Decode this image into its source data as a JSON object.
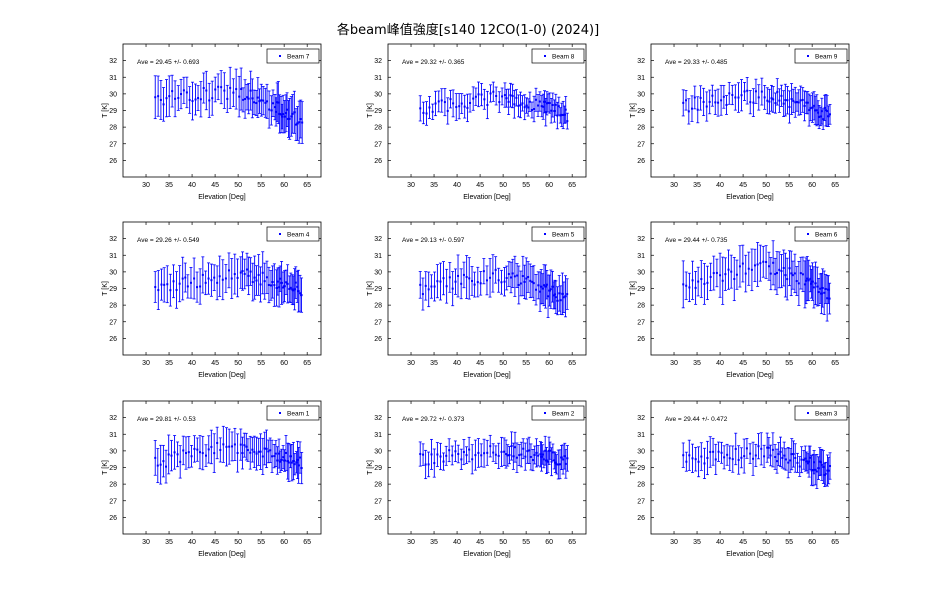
{
  "title": "各beam峰值強度[s140  12CO(1-0) (2024)]",
  "colors": {
    "series": "#0000ff",
    "axes": "#000000",
    "background": "#ffffff"
  },
  "chart_data": [
    {
      "type": "scatter",
      "beam": "Beam 7",
      "legend": "Beam 7",
      "annotation": "Ave = 29.45 +/- 0.693",
      "xlabel": "Elevation [Deg]",
      "ylabel": "T [K]",
      "xlim": [
        25,
        68
      ],
      "ylim": [
        25,
        33
      ],
      "xticks": [
        30,
        35,
        40,
        45,
        50,
        55,
        60,
        65
      ],
      "yticks": [
        26,
        27,
        28,
        29,
        30,
        31,
        32
      ],
      "error_bars": true,
      "legend_position": "top-right",
      "elevation_range": [
        32,
        64
      ],
      "profile": {
        "start": 29.7,
        "peak": 30.1,
        "end": 28.2
      },
      "errorbar_halfwidth": 1.0
    },
    {
      "type": "scatter",
      "beam": "Beam 8",
      "legend": "Beam 8",
      "annotation": "Ave = 29.32 +/- 0.365",
      "xlabel": "Elevation [Deg]",
      "ylabel": "T [K]",
      "xlim": [
        25,
        68
      ],
      "ylim": [
        25,
        33
      ],
      "xticks": [
        30,
        35,
        40,
        45,
        50,
        55,
        60,
        65
      ],
      "yticks": [
        26,
        27,
        28,
        29,
        30,
        31,
        32
      ],
      "error_bars": true,
      "legend_position": "top-right",
      "elevation_range": [
        32,
        64
      ],
      "profile": {
        "start": 29.0,
        "peak": 29.8,
        "end": 28.7
      },
      "errorbar_halfwidth": 0.65
    },
    {
      "type": "scatter",
      "beam": "Beam 9",
      "legend": "Beam 9",
      "annotation": "Ave = 29.33 +/- 0.485",
      "xlabel": "Elevation [Deg]",
      "ylabel": "T [K]",
      "xlim": [
        25,
        68
      ],
      "ylim": [
        25,
        33
      ],
      "xticks": [
        30,
        35,
        40,
        45,
        50,
        55,
        60,
        65
      ],
      "yticks": [
        26,
        27,
        28,
        29,
        30,
        31,
        32
      ],
      "error_bars": true,
      "legend_position": "top-right",
      "elevation_range": [
        32,
        64
      ],
      "profile": {
        "start": 29.3,
        "peak": 29.9,
        "end": 28.6
      },
      "errorbar_halfwidth": 0.75
    },
    {
      "type": "scatter",
      "beam": "Beam 4",
      "legend": "Beam 4",
      "annotation": "Ave = 29.26 +/- 0.549",
      "xlabel": "Elevation [Deg]",
      "ylabel": "T [K]",
      "xlim": [
        25,
        68
      ],
      "ylim": [
        25,
        33
      ],
      "xticks": [
        30,
        35,
        40,
        45,
        50,
        55,
        60,
        65
      ],
      "yticks": [
        26,
        27,
        28,
        29,
        30,
        31,
        32
      ],
      "error_bars": true,
      "legend_position": "top-right",
      "elevation_range": [
        32,
        64
      ],
      "profile": {
        "start": 28.9,
        "peak": 29.9,
        "end": 28.9
      },
      "errorbar_halfwidth": 1.0
    },
    {
      "type": "scatter",
      "beam": "Beam 5",
      "legend": "Beam 5",
      "annotation": "Ave = 29.13 +/- 0.597",
      "xlabel": "Elevation [Deg]",
      "ylabel": "T [K]",
      "xlim": [
        25,
        68
      ],
      "ylim": [
        25,
        33
      ],
      "xticks": [
        30,
        35,
        40,
        45,
        50,
        55,
        60,
        65
      ],
      "yticks": [
        26,
        27,
        28,
        29,
        30,
        31,
        32
      ],
      "error_bars": true,
      "legend_position": "top-right",
      "elevation_range": [
        32,
        64
      ],
      "profile": {
        "start": 29.0,
        "peak": 29.8,
        "end": 28.3
      },
      "errorbar_halfwidth": 1.0
    },
    {
      "type": "scatter",
      "beam": "Beam 6",
      "legend": "Beam 6",
      "annotation": "Ave = 29.44 +/- 0.735",
      "xlabel": "Elevation [Deg]",
      "ylabel": "T [K]",
      "xlim": [
        25,
        68
      ],
      "ylim": [
        25,
        33
      ],
      "xticks": [
        30,
        35,
        40,
        45,
        50,
        55,
        60,
        65
      ],
      "yticks": [
        26,
        27,
        28,
        29,
        30,
        31,
        32
      ],
      "error_bars": true,
      "legend_position": "top-right",
      "elevation_range": [
        32,
        64
      ],
      "profile": {
        "start": 29.0,
        "peak": 30.4,
        "end": 28.5
      },
      "errorbar_halfwidth": 1.1
    },
    {
      "type": "scatter",
      "beam": "Beam 1",
      "legend": "Beam 1",
      "annotation": "Ave = 29.81 +/- 0.53",
      "xlabel": "Elevation [Deg]",
      "ylabel": "T [K]",
      "xlim": [
        25,
        68
      ],
      "ylim": [
        25,
        33
      ],
      "xticks": [
        30,
        35,
        40,
        45,
        50,
        55,
        60,
        65
      ],
      "yticks": [
        26,
        27,
        28,
        29,
        30,
        31,
        32
      ],
      "error_bars": true,
      "legend_position": "top-right",
      "elevation_range": [
        32,
        64
      ],
      "profile": {
        "start": 29.3,
        "peak": 30.3,
        "end": 29.2
      },
      "errorbar_halfwidth": 0.9
    },
    {
      "type": "scatter",
      "beam": "Beam 2",
      "legend": "Beam 2",
      "annotation": "Ave = 29.72 +/- 0.373",
      "xlabel": "Elevation [Deg]",
      "ylabel": "T [K]",
      "xlim": [
        25,
        68
      ],
      "ylim": [
        25,
        33
      ],
      "xticks": [
        30,
        35,
        40,
        45,
        50,
        55,
        60,
        65
      ],
      "yticks": [
        26,
        27,
        28,
        29,
        30,
        31,
        32
      ],
      "error_bars": true,
      "legend_position": "top-right",
      "elevation_range": [
        32,
        64
      ],
      "profile": {
        "start": 29.5,
        "peak": 30.0,
        "end": 29.4
      },
      "errorbar_halfwidth": 0.7
    },
    {
      "type": "scatter",
      "beam": "Beam 3",
      "legend": "Beam 3",
      "annotation": "Ave = 29.44 +/- 0.472",
      "xlabel": "Elevation [Deg]",
      "ylabel": "T [K]",
      "xlim": [
        25,
        68
      ],
      "ylim": [
        25,
        33
      ],
      "xticks": [
        30,
        35,
        40,
        45,
        50,
        55,
        60,
        65
      ],
      "yticks": [
        26,
        27,
        28,
        29,
        30,
        31,
        32
      ],
      "error_bars": true,
      "legend_position": "top-right",
      "elevation_range": [
        32,
        64
      ],
      "profile": {
        "start": 29.4,
        "peak": 29.9,
        "end": 28.8
      },
      "errorbar_halfwidth": 0.8
    }
  ]
}
